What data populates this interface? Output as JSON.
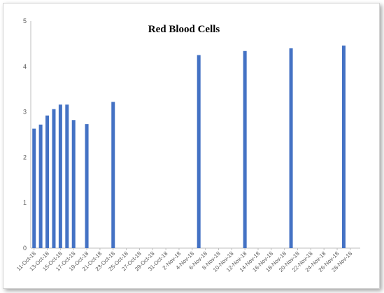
{
  "chart_data": {
    "type": "bar",
    "title": "Red Blood Cells",
    "xlabel": "",
    "ylabel": "",
    "ylim": [
      0,
      5
    ],
    "yticks": [
      0,
      1,
      2,
      3,
      4,
      5
    ],
    "x_tick_labels": [
      "11-Oct-18",
      "13-Oct-18",
      "15-Oct-18",
      "17-Oct-18",
      "19-Oct-18",
      "21-Oct-18",
      "23-Oct-18",
      "25-Oct-18",
      "27-Oct-18",
      "29-Oct-18",
      "31-Oct-18",
      "2-Nov-18",
      "4-Nov-18",
      "6-Nov-18",
      "8-Nov-18",
      "10-Nov-18",
      "12-Nov-18",
      "14-Nov-18",
      "16-Nov-18",
      "18-Nov-18",
      "20-Nov-18",
      "22-Nov-18",
      "24-Nov-18",
      "26-Nov-18",
      "28-Nov-18"
    ],
    "x_range": [
      "11-Oct-18",
      "29-Nov-18"
    ],
    "x": [
      "11-Oct-18",
      "12-Oct-18",
      "13-Oct-18",
      "14-Oct-18",
      "15-Oct-18",
      "16-Oct-18",
      "17-Oct-18",
      "19-Oct-18",
      "23-Oct-18",
      "5-Nov-18",
      "12-Nov-18",
      "19-Nov-18",
      "27-Nov-18"
    ],
    "values": [
      2.63,
      2.72,
      2.92,
      3.06,
      3.16,
      3.16,
      2.82,
      2.73,
      3.22,
      4.25,
      4.34,
      4.4,
      4.46
    ],
    "bar_color": "#4472c4",
    "grid": false,
    "legend": "none"
  }
}
